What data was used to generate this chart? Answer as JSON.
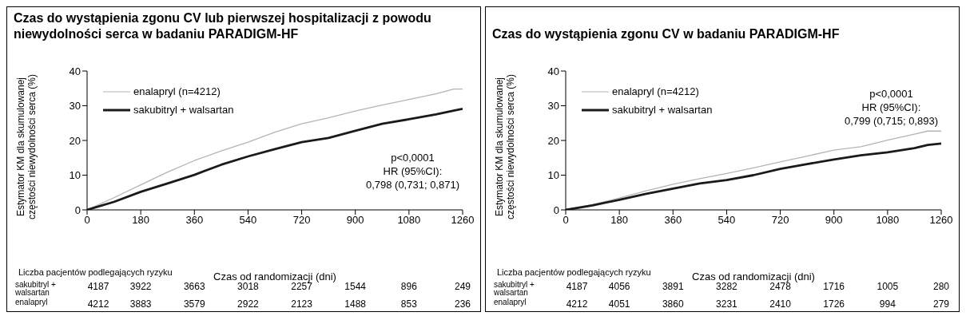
{
  "chart_data": [
    {
      "type": "line",
      "title": "Czas do wystąpienia zgonu CV lub pierwszej hospitalizacji z powodu niewydolności serca w badaniu PARADIGM-HF",
      "xlabel": "Czas od randomizacji (dni)",
      "ylabel": "Estymator KM  dla skumulowanej częstości niewydolności serca (%)",
      "x": [
        0,
        90,
        180,
        270,
        360,
        450,
        540,
        630,
        720,
        810,
        900,
        990,
        1080,
        1170,
        1230,
        1260
      ],
      "series": [
        {
          "name": "enalapryl (n=4212)",
          "color": "#b4b4b4",
          "values": [
            0,
            3.5,
            7.2,
            10.9,
            14.2,
            17,
            19.5,
            22.4,
            24.8,
            26.5,
            28.5,
            30.2,
            31.8,
            33.4,
            34.8,
            34.8
          ]
        },
        {
          "name": "sakubitryl + walsartan",
          "color": "#1a1a1a",
          "values": [
            0,
            2.3,
            5.2,
            7.6,
            10.1,
            13,
            15.4,
            17.5,
            19.5,
            20.7,
            22.8,
            24.8,
            26.1,
            27.5,
            28.6,
            29.1
          ]
        }
      ],
      "xlim": [
        0,
        1260
      ],
      "xticks": [
        0,
        180,
        360,
        540,
        720,
        900,
        1080,
        1260
      ],
      "ylim": [
        0,
        40
      ],
      "yticks": [
        0,
        10,
        20,
        30,
        40
      ],
      "legend": "top left",
      "grid": false,
      "annotations": [
        "p<0,0001",
        "HR (95%CI):",
        "0,798 (0,731; 0,871)",
        "Liczba pacjentów podlegających ryzyku",
        "sakubitryl + walsartan",
        "4187",
        "3922",
        "3663",
        "3018",
        "2257",
        "1544",
        "896",
        "249",
        "enalapryl",
        "4212",
        "3883",
        "3579",
        "2922",
        "2123",
        "1488",
        "853",
        "236"
      ]
    },
    {
      "type": "line",
      "title": "Czas do wystąpienia zgonu CV w badaniu PARADIGM-HF",
      "xlabel": "Czas od randomizacji (dni)",
      "ylabel": "Estymator KM  dla skumulowanej częstości niewydolności serca (%)",
      "x": [
        0,
        90,
        180,
        270,
        360,
        450,
        540,
        630,
        720,
        810,
        900,
        990,
        1080,
        1170,
        1215,
        1260
      ],
      "series": [
        {
          "name": "enalapryl (n=4212)",
          "color": "#b4b4b4",
          "values": [
            0,
            1.5,
            3.4,
            5.5,
            7.4,
            9,
            10.5,
            12.1,
            13.8,
            15.5,
            17.2,
            18.2,
            20.1,
            21.8,
            22.7,
            22.7
          ]
        },
        {
          "name": "sakubitryl + walsartan",
          "color": "#1a1a1a",
          "values": [
            0,
            1.3,
            2.9,
            4.6,
            6.1,
            7.6,
            8.6,
            10,
            11.8,
            13.2,
            14.5,
            15.7,
            16.6,
            17.8,
            18.7,
            19.1
          ]
        }
      ],
      "xlim": [
        0,
        1260
      ],
      "xticks": [
        0,
        180,
        360,
        540,
        720,
        900,
        1080,
        1260
      ],
      "ylim": [
        0,
        40
      ],
      "yticks": [
        0,
        10,
        20,
        30,
        40
      ],
      "legend": "top left",
      "grid": false,
      "annotations": [
        "p<0,0001",
        "HR (95%CI):",
        "0,799 (0,715; 0,893)",
        "Liczba pacjentów podlegających ryzyku",
        "sakubitryl + walsartan",
        "4187",
        "4056",
        "3891",
        "3282",
        "2478",
        "1716",
        "1005",
        "280",
        "enalapryl",
        "4212",
        "4051",
        "3860",
        "3231",
        "2410",
        "1726",
        "994",
        "279"
      ]
    }
  ]
}
